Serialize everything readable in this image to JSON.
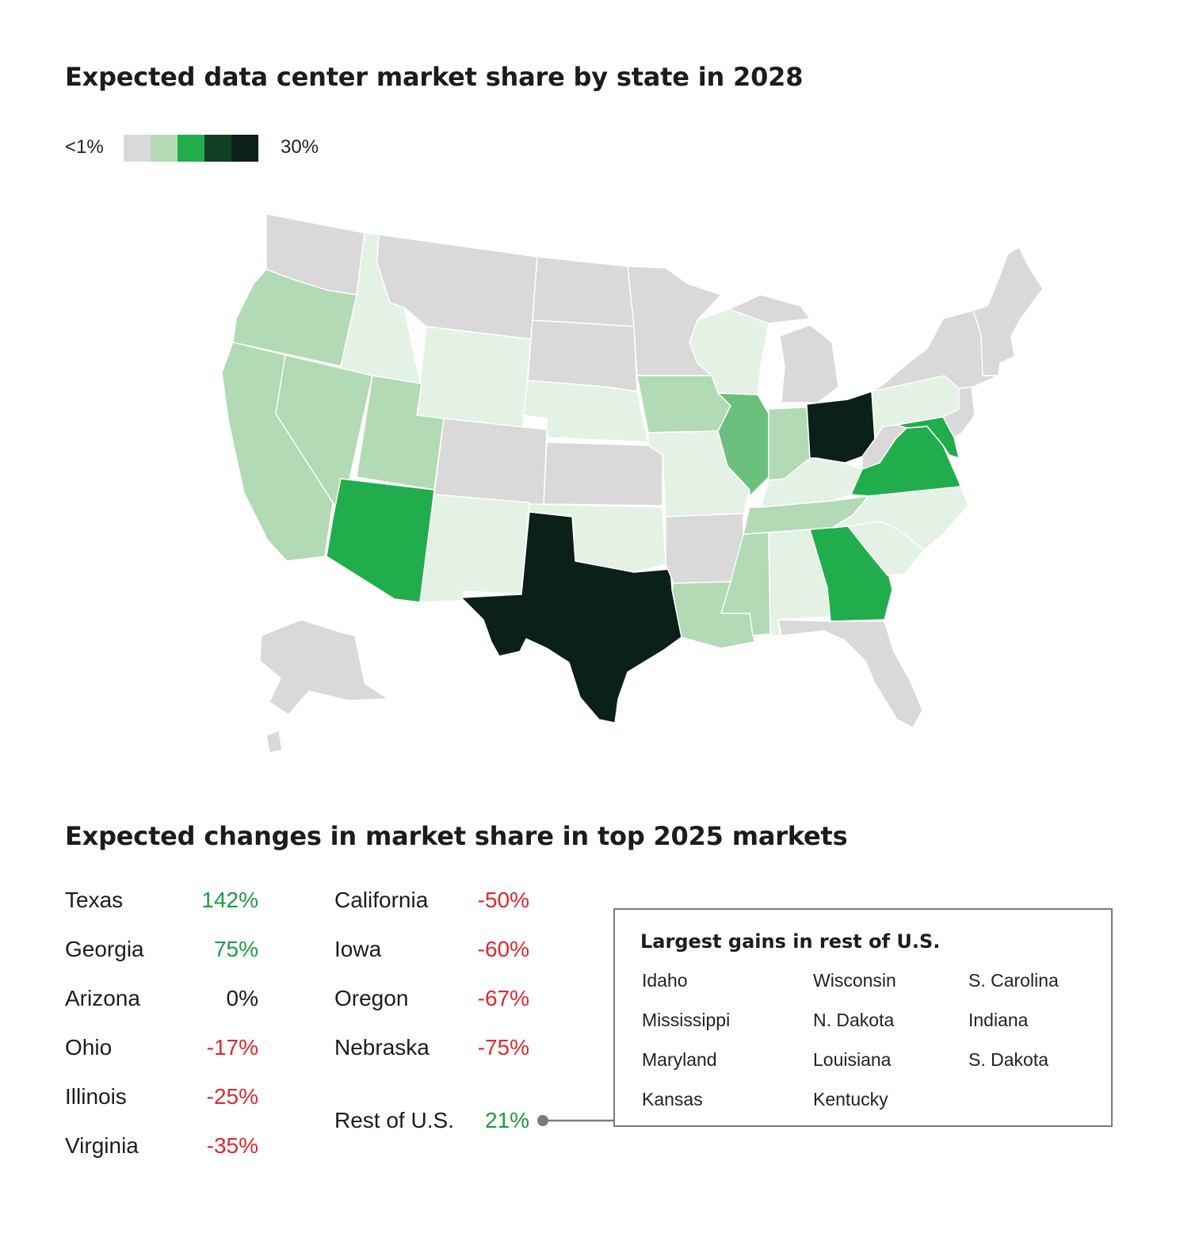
{
  "map": {
    "title": "Expected data center market share by state in 2028",
    "legend": {
      "min_label": "<1%",
      "max_label": "30%",
      "colors": [
        "#d9d9d9",
        "#b2dab4",
        "#22ad4d",
        "#113f24",
        "#0a2019"
      ]
    },
    "state_colors": {
      "none": "#d9d9d9",
      "very_light": "#e3f2e5",
      "light": "#b2dab4",
      "medium": "#6cc07e",
      "strong": "#22ad4d",
      "dark": "#0a2019",
      "border": "#ffffff"
    }
  },
  "changes": {
    "title": "Expected changes in market share in top 2025 markets",
    "column_1": [
      {
        "state": "Texas",
        "change": "142%",
        "sign": "pos"
      },
      {
        "state": "Georgia",
        "change": "75%",
        "sign": "pos"
      },
      {
        "state": "Arizona",
        "change": "0%",
        "sign": "zero"
      },
      {
        "state": "Ohio",
        "change": "-17%",
        "sign": "neg"
      },
      {
        "state": "Illinois",
        "change": "-25%",
        "sign": "neg"
      },
      {
        "state": "Virginia",
        "change": "-35%",
        "sign": "neg"
      }
    ],
    "column_2": [
      {
        "state": "California",
        "change": "-50%",
        "sign": "neg"
      },
      {
        "state": "Iowa",
        "change": "-60%",
        "sign": "neg"
      },
      {
        "state": "Oregon",
        "change": "-67%",
        "sign": "neg"
      },
      {
        "state": "Nebraska",
        "change": "-75%",
        "sign": "neg"
      }
    ],
    "rest": {
      "state": "Rest of U.S.",
      "change": "21%"
    }
  },
  "gains": {
    "title": "Largest gains in rest of U.S.",
    "column_1": [
      "Idaho",
      "Mississippi",
      "Maryland",
      "Kansas"
    ],
    "column_2": [
      "Wisconsin",
      "N. Dakota",
      "Louisiana",
      "Kentucky"
    ],
    "column_3": [
      "S. Carolina",
      "Indiana",
      "S. Dakota"
    ]
  }
}
